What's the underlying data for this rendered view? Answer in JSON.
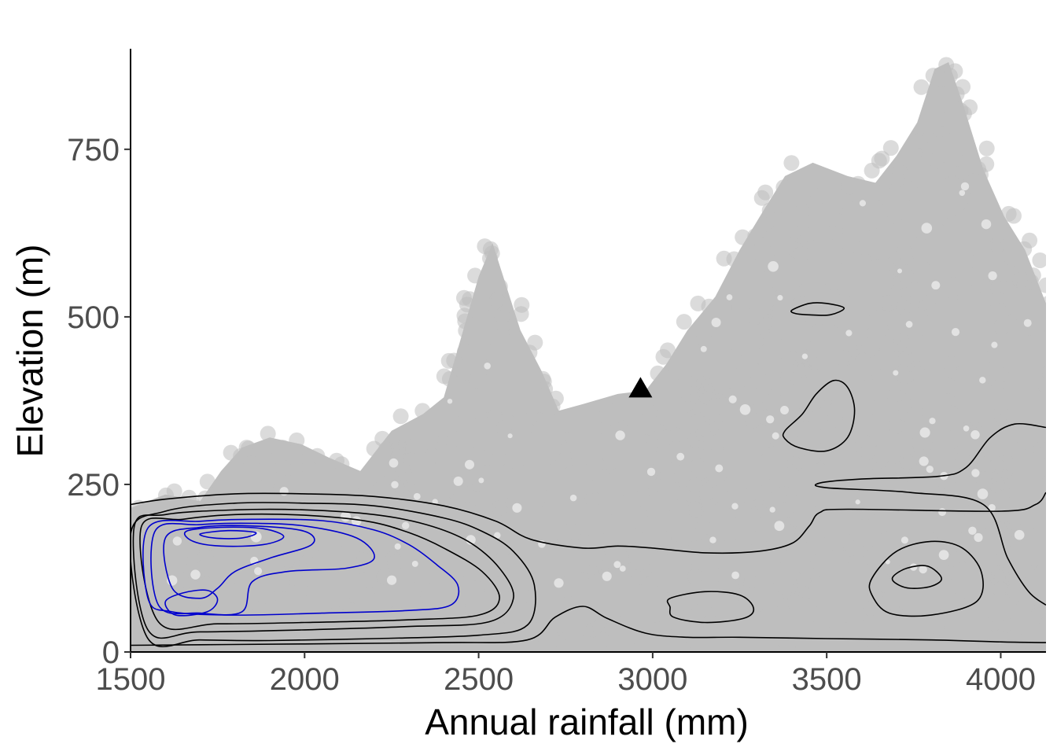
{
  "chart_data": {
    "type": "scatter",
    "title": "",
    "xlabel": "Annual rainfall (mm)",
    "ylabel": "Elevation (m)",
    "xlim": [
      1500,
      4130
    ],
    "ylim": [
      0,
      900
    ],
    "x_ticks": [
      1500,
      2000,
      2500,
      3000,
      3500,
      4000
    ],
    "y_ticks": [
      0,
      250,
      500,
      750
    ],
    "grid": false,
    "legend": "none",
    "colors": {
      "points": "#bebebe",
      "contour_outer": "#000000",
      "contour_inner": "#0000cd",
      "marker": "#000000",
      "tick_text": "#4d4d4d"
    },
    "point_cloud_envelope": [
      [
        1500,
        0
      ],
      [
        1500,
        215
      ],
      [
        1600,
        235
      ],
      [
        1700,
        225
      ],
      [
        1760,
        270
      ],
      [
        1820,
        305
      ],
      [
        1900,
        320
      ],
      [
        1990,
        310
      ],
      [
        2070,
        290
      ],
      [
        2160,
        270
      ],
      [
        2250,
        330
      ],
      [
        2340,
        355
      ],
      [
        2400,
        380
      ],
      [
        2450,
        470
      ],
      [
        2500,
        560
      ],
      [
        2540,
        610
      ],
      [
        2580,
        545
      ],
      [
        2620,
        480
      ],
      [
        2680,
        420
      ],
      [
        2730,
        360
      ],
      [
        2800,
        370
      ],
      [
        2900,
        385
      ],
      [
        2980,
        390
      ],
      [
        3040,
        430
      ],
      [
        3100,
        480
      ],
      [
        3180,
        530
      ],
      [
        3250,
        600
      ],
      [
        3320,
        660
      ],
      [
        3380,
        710
      ],
      [
        3460,
        730
      ],
      [
        3560,
        710
      ],
      [
        3640,
        700
      ],
      [
        3700,
        740
      ],
      [
        3760,
        790
      ],
      [
        3810,
        870
      ],
      [
        3850,
        880
      ],
      [
        3890,
        820
      ],
      [
        3950,
        720
      ],
      [
        4010,
        650
      ],
      [
        4070,
        600
      ],
      [
        4130,
        520
      ],
      [
        4130,
        0
      ]
    ],
    "special_point": {
      "shape": "triangle",
      "x": 2965,
      "y": 395
    },
    "contours": [
      {
        "level": 1,
        "color": "#000000",
        "closed": false,
        "points": [
          [
            1500,
            220
          ],
          [
            1600,
            228
          ],
          [
            1800,
            236
          ],
          [
            2000,
            236
          ],
          [
            2200,
            232
          ],
          [
            2400,
            218
          ],
          [
            2550,
            195
          ],
          [
            2650,
            168
          ],
          [
            2800,
            155
          ],
          [
            2900,
            158
          ],
          [
            3000,
            155
          ],
          [
            3150,
            148
          ],
          [
            3300,
            150
          ],
          [
            3400,
            162
          ],
          [
            3450,
            188
          ],
          [
            3480,
            208
          ],
          [
            3560,
            213
          ],
          [
            4000,
            210
          ],
          [
            4100,
            220
          ],
          [
            4130,
            238
          ]
        ]
      },
      {
        "level": 1,
        "color": "#000000",
        "closed": false,
        "points": [
          [
            1500,
            10
          ],
          [
            2000,
            12
          ],
          [
            2400,
            14
          ],
          [
            2640,
            18
          ],
          [
            2720,
            52
          ],
          [
            2800,
            68
          ],
          [
            2870,
            50
          ],
          [
            2980,
            28
          ],
          [
            3100,
            22
          ],
          [
            3250,
            22
          ],
          [
            3500,
            20
          ],
          [
            3800,
            18
          ],
          [
            4000,
            15
          ],
          [
            4130,
            14
          ]
        ]
      },
      {
        "level": 1,
        "color": "#000000",
        "closed": false,
        "points": [
          [
            4130,
            335
          ],
          [
            4040,
            340
          ],
          [
            3970,
            320
          ],
          [
            3900,
            275
          ],
          [
            3820,
            262
          ],
          [
            3600,
            258
          ],
          [
            3480,
            252
          ],
          [
            3500,
            245
          ],
          [
            3740,
            238
          ],
          [
            3950,
            220
          ],
          [
            4020,
            140
          ],
          [
            4080,
            90
          ],
          [
            4130,
            70
          ]
        ]
      },
      {
        "level": 1,
        "color": "#000000",
        "closed": true,
        "points": [
          [
            3380,
            330
          ],
          [
            3430,
            355
          ],
          [
            3470,
            385
          ],
          [
            3520,
            405
          ],
          [
            3560,
            395
          ],
          [
            3580,
            360
          ],
          [
            3560,
            320
          ],
          [
            3500,
            300
          ],
          [
            3420,
            305
          ],
          [
            3380,
            318
          ]
        ]
      },
      {
        "level": 1,
        "color": "#000000",
        "closed": true,
        "points": [
          [
            3400,
            510
          ],
          [
            3450,
            520
          ],
          [
            3500,
            520
          ],
          [
            3550,
            513
          ],
          [
            3510,
            503
          ],
          [
            3450,
            503
          ],
          [
            3410,
            505
          ]
        ]
      },
      {
        "level": 1,
        "color": "#000000",
        "closed": true,
        "points": [
          [
            3050,
            80
          ],
          [
            3150,
            90
          ],
          [
            3250,
            85
          ],
          [
            3290,
            65
          ],
          [
            3260,
            50
          ],
          [
            3150,
            44
          ],
          [
            3060,
            52
          ],
          [
            3050,
            67
          ]
        ]
      },
      {
        "level": 2,
        "color": "#000000",
        "closed": true,
        "points": [
          [
            3630,
            110
          ],
          [
            3700,
            150
          ],
          [
            3800,
            165
          ],
          [
            3890,
            155
          ],
          [
            3945,
            118
          ],
          [
            3930,
            75
          ],
          [
            3800,
            55
          ],
          [
            3680,
            58
          ],
          [
            3630,
            85
          ]
        ]
      },
      {
        "level": 3,
        "color": "#000000",
        "closed": true,
        "points": [
          [
            3690,
            112
          ],
          [
            3730,
            125
          ],
          [
            3790,
            128
          ],
          [
            3830,
            110
          ],
          [
            3800,
            98
          ],
          [
            3740,
            95
          ],
          [
            3700,
            102
          ]
        ]
      },
      {
        "level": 2,
        "color": "#000000",
        "closed": true,
        "points": [
          [
            1500,
            175
          ],
          [
            1600,
            210
          ],
          [
            1800,
            222
          ],
          [
            2000,
            222
          ],
          [
            2200,
            218
          ],
          [
            2400,
            200
          ],
          [
            2510,
            180
          ],
          [
            2600,
            150
          ],
          [
            2660,
            100
          ],
          [
            2640,
            40
          ],
          [
            2500,
            25
          ],
          [
            2200,
            20
          ],
          [
            1900,
            17
          ],
          [
            1700,
            18
          ],
          [
            1550,
            20
          ]
        ]
      },
      {
        "level": 3,
        "color": "#000000",
        "closed": true,
        "points": [
          [
            1510,
            185
          ],
          [
            1600,
            205
          ],
          [
            1800,
            212
          ],
          [
            2000,
            212
          ],
          [
            2200,
            205
          ],
          [
            2350,
            190
          ],
          [
            2470,
            165
          ],
          [
            2560,
            125
          ],
          [
            2600,
            80
          ],
          [
            2530,
            45
          ],
          [
            2300,
            38
          ],
          [
            2000,
            33
          ],
          [
            1700,
            30
          ],
          [
            1550,
            33
          ]
        ]
      },
      {
        "level": 4,
        "color": "#000000",
        "closed": true,
        "points": [
          [
            1530,
            185
          ],
          [
            1650,
            198
          ],
          [
            1800,
            205
          ],
          [
            2000,
            204
          ],
          [
            2180,
            195
          ],
          [
            2300,
            178
          ],
          [
            2400,
            155
          ],
          [
            2510,
            120
          ],
          [
            2560,
            80
          ],
          [
            2500,
            55
          ],
          [
            2300,
            48
          ],
          [
            2000,
            44
          ],
          [
            1750,
            42
          ],
          [
            1580,
            45
          ]
        ]
      },
      {
        "level": 5,
        "color": "#0000cd",
        "closed": true,
        "points": [
          [
            1550,
            185
          ],
          [
            1700,
            195
          ],
          [
            1850,
            198
          ],
          [
            2050,
            196
          ],
          [
            2200,
            182
          ],
          [
            2300,
            160
          ],
          [
            2380,
            130
          ],
          [
            2440,
            100
          ],
          [
            2420,
            70
          ],
          [
            2300,
            62
          ],
          [
            2050,
            58
          ],
          [
            1800,
            55
          ],
          [
            1620,
            60
          ],
          [
            1550,
            80
          ]
        ]
      },
      {
        "level": 6,
        "color": "#0000cd",
        "closed": true,
        "points": [
          [
            1570,
            180
          ],
          [
            1700,
            190
          ],
          [
            1850,
            192
          ],
          [
            2000,
            188
          ],
          [
            2150,
            170
          ],
          [
            2200,
            140
          ],
          [
            2120,
            125
          ],
          [
            1950,
            120
          ],
          [
            1850,
            105
          ],
          [
            1820,
            60
          ],
          [
            1700,
            58
          ],
          [
            1580,
            70
          ]
        ]
      },
      {
        "level": 7,
        "color": "#0000cd",
        "closed": true,
        "points": [
          [
            1600,
            170
          ],
          [
            1700,
            186
          ],
          [
            1850,
            188
          ],
          [
            2000,
            180
          ],
          [
            2020,
            160
          ],
          [
            1900,
            140
          ],
          [
            1800,
            120
          ],
          [
            1750,
            95
          ],
          [
            1700,
            80
          ],
          [
            1620,
            95
          ]
        ]
      },
      {
        "level": 7,
        "color": "#0000cd",
        "closed": true,
        "points": [
          [
            1600,
            75
          ],
          [
            1650,
            88
          ],
          [
            1720,
            92
          ],
          [
            1750,
            78
          ],
          [
            1720,
            60
          ],
          [
            1630,
            55
          ]
        ]
      },
      {
        "level": 8,
        "color": "#0000cd",
        "closed": true,
        "points": [
          [
            1660,
            180
          ],
          [
            1760,
            186
          ],
          [
            1880,
            184
          ],
          [
            1940,
            172
          ],
          [
            1880,
            160
          ],
          [
            1760,
            158
          ],
          [
            1680,
            165
          ]
        ]
      },
      {
        "level": 9,
        "color": "#0000cd",
        "closed": true,
        "points": [
          [
            1700,
            176
          ],
          [
            1780,
            181
          ],
          [
            1860,
            178
          ],
          [
            1820,
            170
          ],
          [
            1740,
            170
          ]
        ]
      }
    ]
  }
}
